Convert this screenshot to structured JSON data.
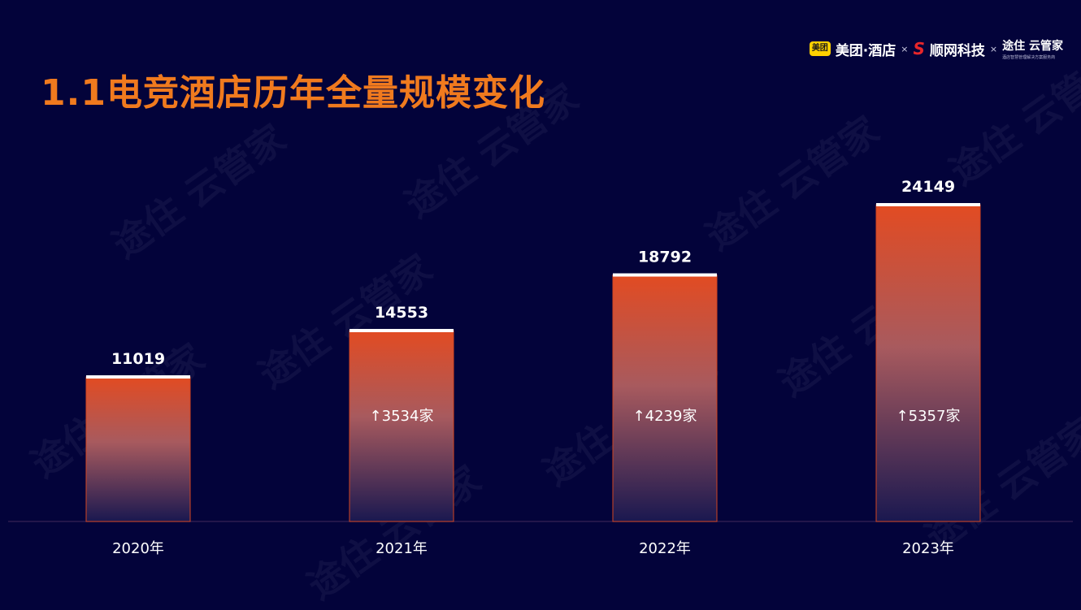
{
  "page": {
    "title": "1.1电竞酒店历年全量规模变化",
    "watermark_text": "途住 云管家"
  },
  "logos": {
    "meituan_badge": "美团",
    "meituan_text": "美团·酒店",
    "sep1": "×",
    "shunwang_text": "顺网科技",
    "sep2": "×",
    "yunguanjia_main": "途住 云管家",
    "yunguanjia_sub": "酒店智慧管理解决方案服务商"
  },
  "chart_data": {
    "type": "bar",
    "categories": [
      "2020年",
      "2021年",
      "2022年",
      "2023年"
    ],
    "values": [
      11019,
      14553,
      18792,
      24149
    ],
    "increase_labels": [
      "",
      "↑3534家",
      "↑4239家",
      "↑5357家"
    ],
    "ylim": [
      0,
      24149
    ],
    "grid": false,
    "colors": {
      "bar_top": "#e24b22",
      "bar_bottom": "#1a1850",
      "bar_border": "#d24420",
      "cap": "#ffffff",
      "baseline": "#2e1c4f",
      "label": "#ffffff"
    }
  }
}
